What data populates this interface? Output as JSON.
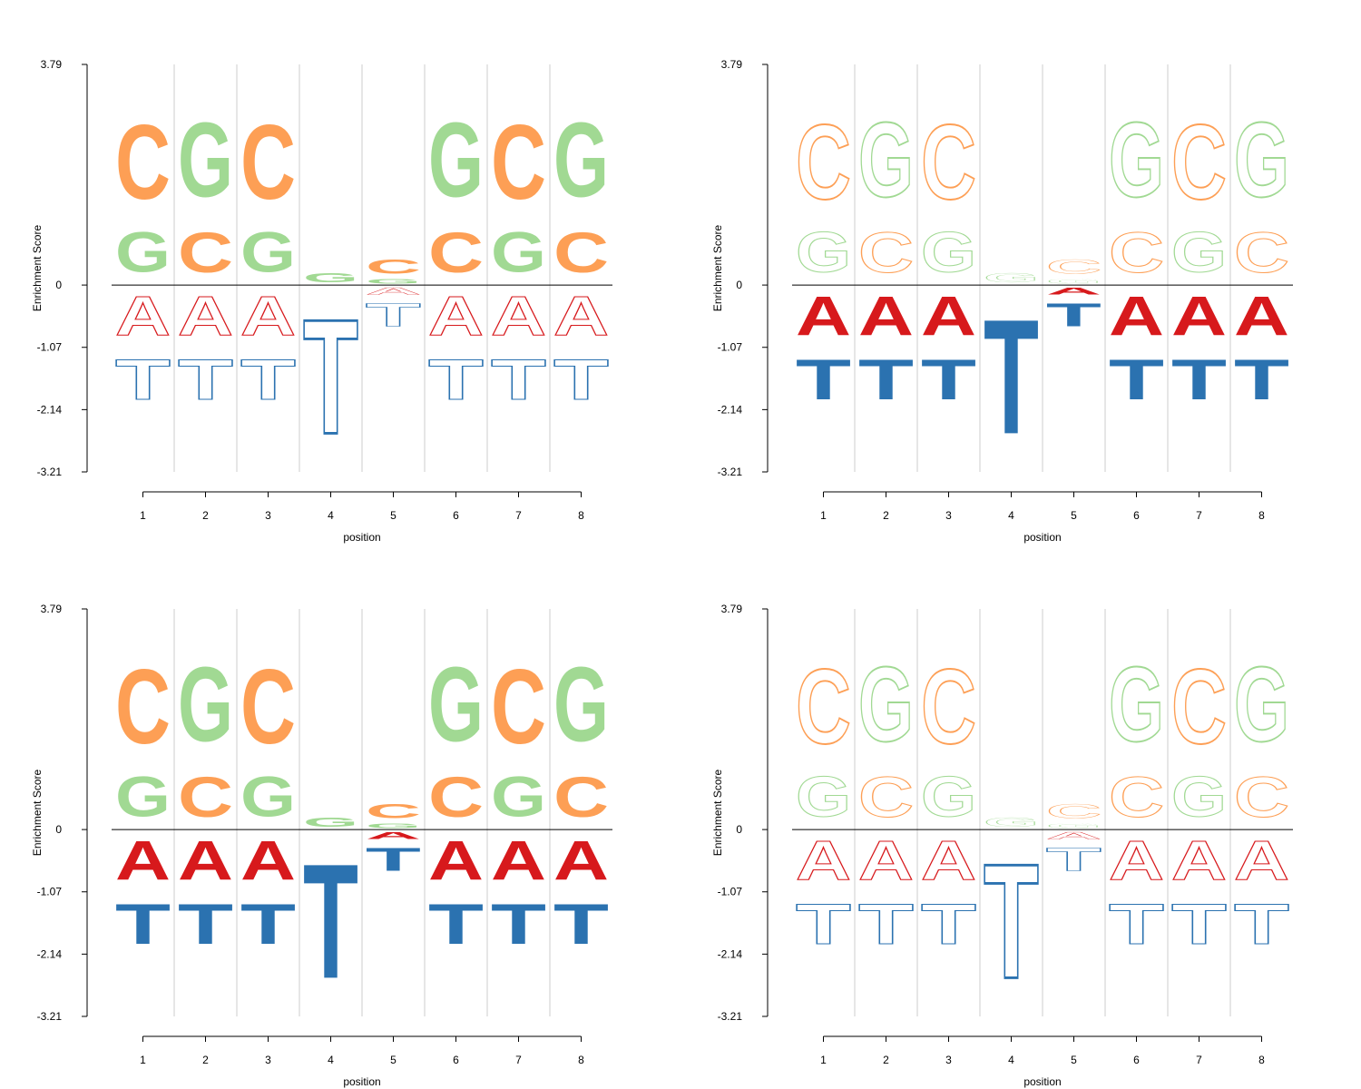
{
  "chart_data": [
    {
      "type": "sequence-logo",
      "panel": "top-left",
      "xlabel": "position",
      "ylabel": "Enrichment Score",
      "ylim": [
        -3.21,
        3.79
      ],
      "yticks": [
        "3.79",
        "0",
        "-1.07",
        "-2.14",
        "-3.21"
      ],
      "positions": [
        1,
        2,
        3,
        4,
        5,
        6,
        7,
        8
      ],
      "style": {
        "up": "filled",
        "down": "outline"
      },
      "columns": [
        {
          "position": 1,
          "up": [
            {
              "letter": "G",
              "value": 1.1
            },
            {
              "letter": "C",
              "value": 2.05
            }
          ],
          "down": [
            {
              "letter": "A",
              "value": -1.07
            },
            {
              "letter": "T",
              "value": -1.1
            }
          ]
        },
        {
          "position": 2,
          "up": [
            {
              "letter": "C",
              "value": 1.1
            },
            {
              "letter": "G",
              "value": 2.05
            }
          ],
          "down": [
            {
              "letter": "A",
              "value": -1.07
            },
            {
              "letter": "T",
              "value": -1.1
            }
          ]
        },
        {
          "position": 3,
          "up": [
            {
              "letter": "G",
              "value": 1.1
            },
            {
              "letter": "C",
              "value": 2.05
            }
          ],
          "down": [
            {
              "letter": "A",
              "value": -1.07
            },
            {
              "letter": "T",
              "value": -1.1
            }
          ]
        },
        {
          "position": 4,
          "up": [
            {
              "letter": "G",
              "value": 0.25
            }
          ],
          "down": [
            {
              "letter": "T",
              "value": -3.15
            }
          ]
        },
        {
          "position": 5,
          "up": [
            {
              "letter": "G",
              "value": 0.12
            },
            {
              "letter": "C",
              "value": 0.38
            }
          ],
          "down": [
            {
              "letter": "A",
              "value": -0.2
            },
            {
              "letter": "T",
              "value": -0.63
            }
          ]
        },
        {
          "position": 6,
          "up": [
            {
              "letter": "C",
              "value": 1.1
            },
            {
              "letter": "G",
              "value": 2.05
            }
          ],
          "down": [
            {
              "letter": "A",
              "value": -1.07
            },
            {
              "letter": "T",
              "value": -1.1
            }
          ]
        },
        {
          "position": 7,
          "up": [
            {
              "letter": "G",
              "value": 1.1
            },
            {
              "letter": "C",
              "value": 2.05
            }
          ],
          "down": [
            {
              "letter": "A",
              "value": -1.07
            },
            {
              "letter": "T",
              "value": -1.1
            }
          ]
        },
        {
          "position": 8,
          "up": [
            {
              "letter": "C",
              "value": 1.1
            },
            {
              "letter": "G",
              "value": 2.05
            }
          ],
          "down": [
            {
              "letter": "A",
              "value": -1.07
            },
            {
              "letter": "T",
              "value": -1.1
            }
          ]
        }
      ]
    },
    {
      "type": "sequence-logo",
      "panel": "top-right",
      "xlabel": "position",
      "ylabel": "Enrichment Score",
      "ylim": [
        -3.21,
        3.79
      ],
      "yticks": [
        "3.79",
        "0",
        "-1.07",
        "-2.14",
        "-3.21"
      ],
      "positions": [
        1,
        2,
        3,
        4,
        5,
        6,
        7,
        8
      ],
      "style": {
        "up": "outline",
        "down": "filled"
      },
      "columns": [
        {
          "position": 1,
          "up": [
            {
              "letter": "G",
              "value": 1.1
            },
            {
              "letter": "C",
              "value": 2.05
            }
          ],
          "down": [
            {
              "letter": "A",
              "value": -1.07
            },
            {
              "letter": "T",
              "value": -1.1
            }
          ]
        },
        {
          "position": 2,
          "up": [
            {
              "letter": "C",
              "value": 1.1
            },
            {
              "letter": "G",
              "value": 2.05
            }
          ],
          "down": [
            {
              "letter": "A",
              "value": -1.07
            },
            {
              "letter": "T",
              "value": -1.1
            }
          ]
        },
        {
          "position": 3,
          "up": [
            {
              "letter": "G",
              "value": 1.1
            },
            {
              "letter": "C",
              "value": 2.05
            }
          ],
          "down": [
            {
              "letter": "A",
              "value": -1.07
            },
            {
              "letter": "T",
              "value": -1.1
            }
          ]
        },
        {
          "position": 4,
          "up": [
            {
              "letter": "G",
              "value": 0.25
            }
          ],
          "down": [
            {
              "letter": "T",
              "value": -3.15
            }
          ]
        },
        {
          "position": 5,
          "up": [
            {
              "letter": "G",
              "value": 0.12
            },
            {
              "letter": "C",
              "value": 0.38
            }
          ],
          "down": [
            {
              "letter": "A",
              "value": -0.2
            },
            {
              "letter": "T",
              "value": -0.63
            }
          ]
        },
        {
          "position": 6,
          "up": [
            {
              "letter": "C",
              "value": 1.1
            },
            {
              "letter": "G",
              "value": 2.05
            }
          ],
          "down": [
            {
              "letter": "A",
              "value": -1.07
            },
            {
              "letter": "T",
              "value": -1.1
            }
          ]
        },
        {
          "position": 7,
          "up": [
            {
              "letter": "G",
              "value": 1.1
            },
            {
              "letter": "C",
              "value": 2.05
            }
          ],
          "down": [
            {
              "letter": "A",
              "value": -1.07
            },
            {
              "letter": "T",
              "value": -1.1
            }
          ]
        },
        {
          "position": 8,
          "up": [
            {
              "letter": "C",
              "value": 1.1
            },
            {
              "letter": "G",
              "value": 2.05
            }
          ],
          "down": [
            {
              "letter": "A",
              "value": -1.07
            },
            {
              "letter": "T",
              "value": -1.1
            }
          ]
        }
      ]
    },
    {
      "type": "sequence-logo",
      "panel": "bottom-left",
      "xlabel": "position",
      "ylabel": "Enrichment Score",
      "ylim": [
        -3.21,
        3.79
      ],
      "yticks": [
        "3.79",
        "0",
        "-1.07",
        "-2.14",
        "-3.21"
      ],
      "positions": [
        1,
        2,
        3,
        4,
        5,
        6,
        7,
        8
      ],
      "style": {
        "up": "filled",
        "down": "filled"
      },
      "columns": [
        {
          "position": 1,
          "up": [
            {
              "letter": "G",
              "value": 1.1
            },
            {
              "letter": "C",
              "value": 2.05
            }
          ],
          "down": [
            {
              "letter": "A",
              "value": -1.07
            },
            {
              "letter": "T",
              "value": -1.1
            }
          ]
        },
        {
          "position": 2,
          "up": [
            {
              "letter": "C",
              "value": 1.1
            },
            {
              "letter": "G",
              "value": 2.05
            }
          ],
          "down": [
            {
              "letter": "A",
              "value": -1.07
            },
            {
              "letter": "T",
              "value": -1.1
            }
          ]
        },
        {
          "position": 3,
          "up": [
            {
              "letter": "G",
              "value": 1.1
            },
            {
              "letter": "C",
              "value": 2.05
            }
          ],
          "down": [
            {
              "letter": "A",
              "value": -1.07
            },
            {
              "letter": "T",
              "value": -1.1
            }
          ]
        },
        {
          "position": 4,
          "up": [
            {
              "letter": "G",
              "value": 0.25
            }
          ],
          "down": [
            {
              "letter": "T",
              "value": -3.15
            }
          ]
        },
        {
          "position": 5,
          "up": [
            {
              "letter": "G",
              "value": 0.12
            },
            {
              "letter": "C",
              "value": 0.38
            }
          ],
          "down": [
            {
              "letter": "A",
              "value": -0.2
            },
            {
              "letter": "T",
              "value": -0.63
            }
          ]
        },
        {
          "position": 6,
          "up": [
            {
              "letter": "C",
              "value": 1.1
            },
            {
              "letter": "G",
              "value": 2.05
            }
          ],
          "down": [
            {
              "letter": "A",
              "value": -1.07
            },
            {
              "letter": "T",
              "value": -1.1
            }
          ]
        },
        {
          "position": 7,
          "up": [
            {
              "letter": "G",
              "value": 1.1
            },
            {
              "letter": "C",
              "value": 2.05
            }
          ],
          "down": [
            {
              "letter": "A",
              "value": -1.07
            },
            {
              "letter": "T",
              "value": -1.1
            }
          ]
        },
        {
          "position": 8,
          "up": [
            {
              "letter": "C",
              "value": 1.1
            },
            {
              "letter": "G",
              "value": 2.05
            }
          ],
          "down": [
            {
              "letter": "A",
              "value": -1.07
            },
            {
              "letter": "T",
              "value": -1.1
            }
          ]
        }
      ]
    },
    {
      "type": "sequence-logo",
      "panel": "bottom-right",
      "xlabel": "position",
      "ylabel": "Enrichment Score",
      "ylim": [
        -3.21,
        3.79
      ],
      "yticks": [
        "3.79",
        "0",
        "-1.07",
        "-2.14",
        "-3.21"
      ],
      "positions": [
        1,
        2,
        3,
        4,
        5,
        6,
        7,
        8
      ],
      "style": {
        "up": "outline",
        "down": "outline"
      },
      "columns": [
        {
          "position": 1,
          "up": [
            {
              "letter": "G",
              "value": 1.1
            },
            {
              "letter": "C",
              "value": 2.05
            }
          ],
          "down": [
            {
              "letter": "A",
              "value": -1.07
            },
            {
              "letter": "T",
              "value": -1.1
            }
          ]
        },
        {
          "position": 2,
          "up": [
            {
              "letter": "C",
              "value": 1.1
            },
            {
              "letter": "G",
              "value": 2.05
            }
          ],
          "down": [
            {
              "letter": "A",
              "value": -1.07
            },
            {
              "letter": "T",
              "value": -1.1
            }
          ]
        },
        {
          "position": 3,
          "up": [
            {
              "letter": "G",
              "value": 1.1
            },
            {
              "letter": "C",
              "value": 2.05
            }
          ],
          "down": [
            {
              "letter": "A",
              "value": -1.07
            },
            {
              "letter": "T",
              "value": -1.1
            }
          ]
        },
        {
          "position": 4,
          "up": [
            {
              "letter": "G",
              "value": 0.25
            }
          ],
          "down": [
            {
              "letter": "T",
              "value": -3.15
            }
          ]
        },
        {
          "position": 5,
          "up": [
            {
              "letter": "G",
              "value": 0.12
            },
            {
              "letter": "C",
              "value": 0.38
            }
          ],
          "down": [
            {
              "letter": "A",
              "value": -0.2
            },
            {
              "letter": "T",
              "value": -0.63
            }
          ]
        },
        {
          "position": 6,
          "up": [
            {
              "letter": "C",
              "value": 1.1
            },
            {
              "letter": "G",
              "value": 2.05
            }
          ],
          "down": [
            {
              "letter": "A",
              "value": -1.07
            },
            {
              "letter": "T",
              "value": -1.1
            }
          ]
        },
        {
          "position": 7,
          "up": [
            {
              "letter": "G",
              "value": 1.1
            },
            {
              "letter": "C",
              "value": 2.05
            }
          ],
          "down": [
            {
              "letter": "A",
              "value": -1.07
            },
            {
              "letter": "T",
              "value": -1.1
            }
          ]
        },
        {
          "position": 8,
          "up": [
            {
              "letter": "C",
              "value": 1.1
            },
            {
              "letter": "G",
              "value": 2.05
            }
          ],
          "down": [
            {
              "letter": "A",
              "value": -1.07
            },
            {
              "letter": "T",
              "value": -1.1
            }
          ]
        }
      ]
    }
  ],
  "colors": {
    "A": "#d7191c",
    "C": "#fd9f55",
    "G": "#a1d993",
    "T": "#2b72b0",
    "grid": "#cccccc",
    "axis": "#000000"
  }
}
